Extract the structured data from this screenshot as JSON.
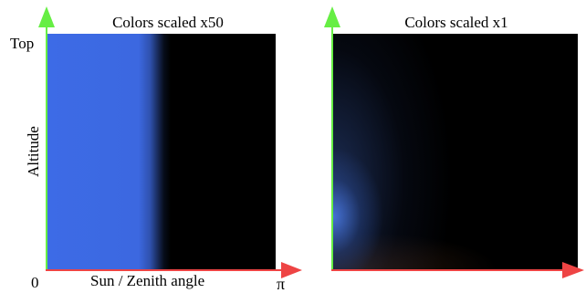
{
  "panels": {
    "left": {
      "title": "Colors scaled x50"
    },
    "right": {
      "title": "Colors scaled x1"
    }
  },
  "axes": {
    "y_top_label": "Top",
    "y_label": "Altitude",
    "x_origin_label": "0",
    "x_label": "Sun / Zenith angle",
    "x_end_label": "π"
  },
  "colors": {
    "y_axis": "#66ee44",
    "x_axis": "#ee4444",
    "sky_blue": "#3d6be6",
    "background": "#000000"
  }
}
